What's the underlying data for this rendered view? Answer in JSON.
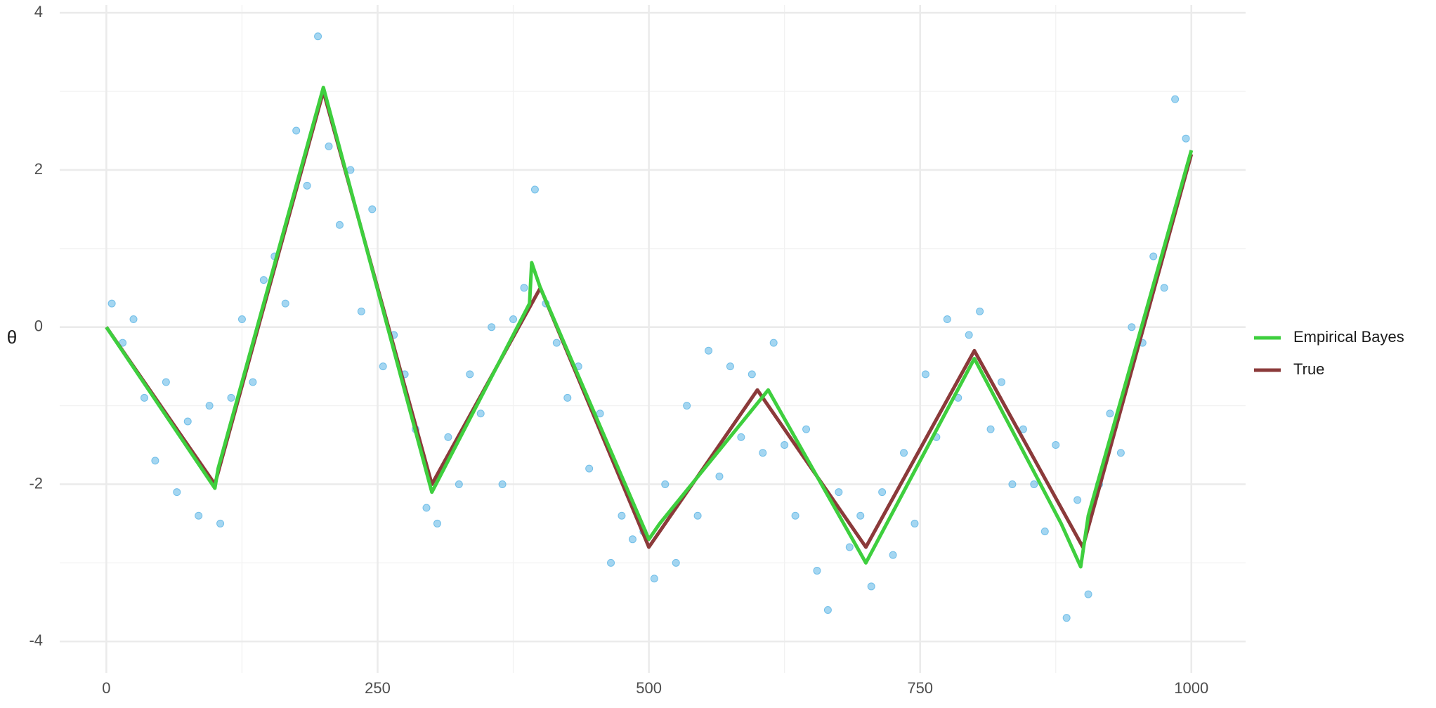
{
  "chart_data": {
    "type": "line",
    "ylabel": "θ",
    "xlim": [
      -43,
      1050
    ],
    "ylim": [
      -4.4,
      4.1
    ],
    "xticks": [
      0,
      250,
      500,
      750,
      1000
    ],
    "yticks": [
      -4,
      -2,
      0,
      2,
      4
    ],
    "grid": true,
    "minor_grid": true,
    "legend": "right",
    "points": {
      "color": "#5ab4e5",
      "x": [
        5,
        15,
        25,
        35,
        45,
        55,
        65,
        75,
        85,
        95,
        105,
        115,
        125,
        135,
        145,
        155,
        165,
        175,
        185,
        195,
        205,
        215,
        225,
        235,
        245,
        255,
        265,
        275,
        285,
        295,
        305,
        315,
        325,
        335,
        345,
        355,
        365,
        375,
        385,
        395,
        405,
        415,
        425,
        435,
        445,
        455,
        465,
        475,
        485,
        495,
        505,
        515,
        525,
        535,
        545,
        555,
        565,
        575,
        585,
        595,
        605,
        615,
        625,
        635,
        645,
        655,
        665,
        675,
        685,
        695,
        705,
        715,
        725,
        735,
        745,
        755,
        765,
        775,
        785,
        795,
        805,
        815,
        825,
        835,
        845,
        855,
        865,
        875,
        885,
        895,
        905,
        915,
        925,
        935,
        945,
        955,
        965,
        975,
        985,
        995
      ],
      "y": [
        0.3,
        -0.2,
        0.1,
        -0.9,
        -1.7,
        -0.7,
        -2.1,
        -1.2,
        -2.4,
        -1.0,
        -2.5,
        -0.9,
        0.1,
        -0.7,
        0.6,
        0.9,
        0.3,
        2.5,
        1.8,
        3.7,
        2.3,
        1.3,
        2.0,
        0.2,
        1.5,
        -0.5,
        -0.1,
        -0.6,
        -1.3,
        -2.3,
        -2.5,
        -1.4,
        -2.0,
        -0.6,
        -1.1,
        0.0,
        -2.0,
        0.1,
        0.5,
        1.75,
        0.3,
        -0.2,
        -0.9,
        -0.5,
        -1.8,
        -1.1,
        -3.0,
        -2.4,
        -2.7,
        -2.6,
        -3.2,
        -2.0,
        -3.0,
        -1.0,
        -2.4,
        -0.3,
        -1.9,
        -0.5,
        -1.4,
        -0.6,
        -1.6,
        -0.2,
        -1.5,
        -2.4,
        -1.3,
        -3.1,
        -3.6,
        -2.1,
        -2.8,
        -2.4,
        -3.3,
        -2.1,
        -2.9,
        -1.6,
        -2.5,
        -0.6,
        -1.4,
        0.1,
        -0.9,
        -0.1,
        0.2,
        -1.3,
        -0.7,
        -2.0,
        -1.3,
        -2.0,
        -2.6,
        -1.5,
        -3.7,
        -2.2,
        -3.4,
        -2.0,
        -1.1,
        -1.6,
        0.0,
        -0.2,
        0.9,
        0.5,
        2.9,
        2.4
      ]
    },
    "series": [
      {
        "name": "Empirical Bayes",
        "color": "#3ecf3e",
        "x": [
          0,
          100,
          103,
          200,
          300,
          390,
          392,
          400,
          500,
          510,
          610,
          700,
          800,
          880,
          898,
          905,
          1000
        ],
        "y": [
          0,
          -2.05,
          -1.8,
          3.05,
          -2.1,
          0.3,
          0.82,
          0.5,
          -2.7,
          -2.5,
          -0.8,
          -3.0,
          -0.4,
          -2.5,
          -3.05,
          -2.4,
          2.25
        ]
      },
      {
        "name": "True",
        "color": "#8b3a3a",
        "x": [
          0,
          100,
          200,
          300,
          400,
          500,
          600,
          700,
          800,
          900,
          1000
        ],
        "y": [
          0,
          -2,
          3,
          -2,
          0.5,
          -2.8,
          -0.8,
          -2.8,
          -0.3,
          -2.8,
          2.2
        ]
      }
    ]
  }
}
